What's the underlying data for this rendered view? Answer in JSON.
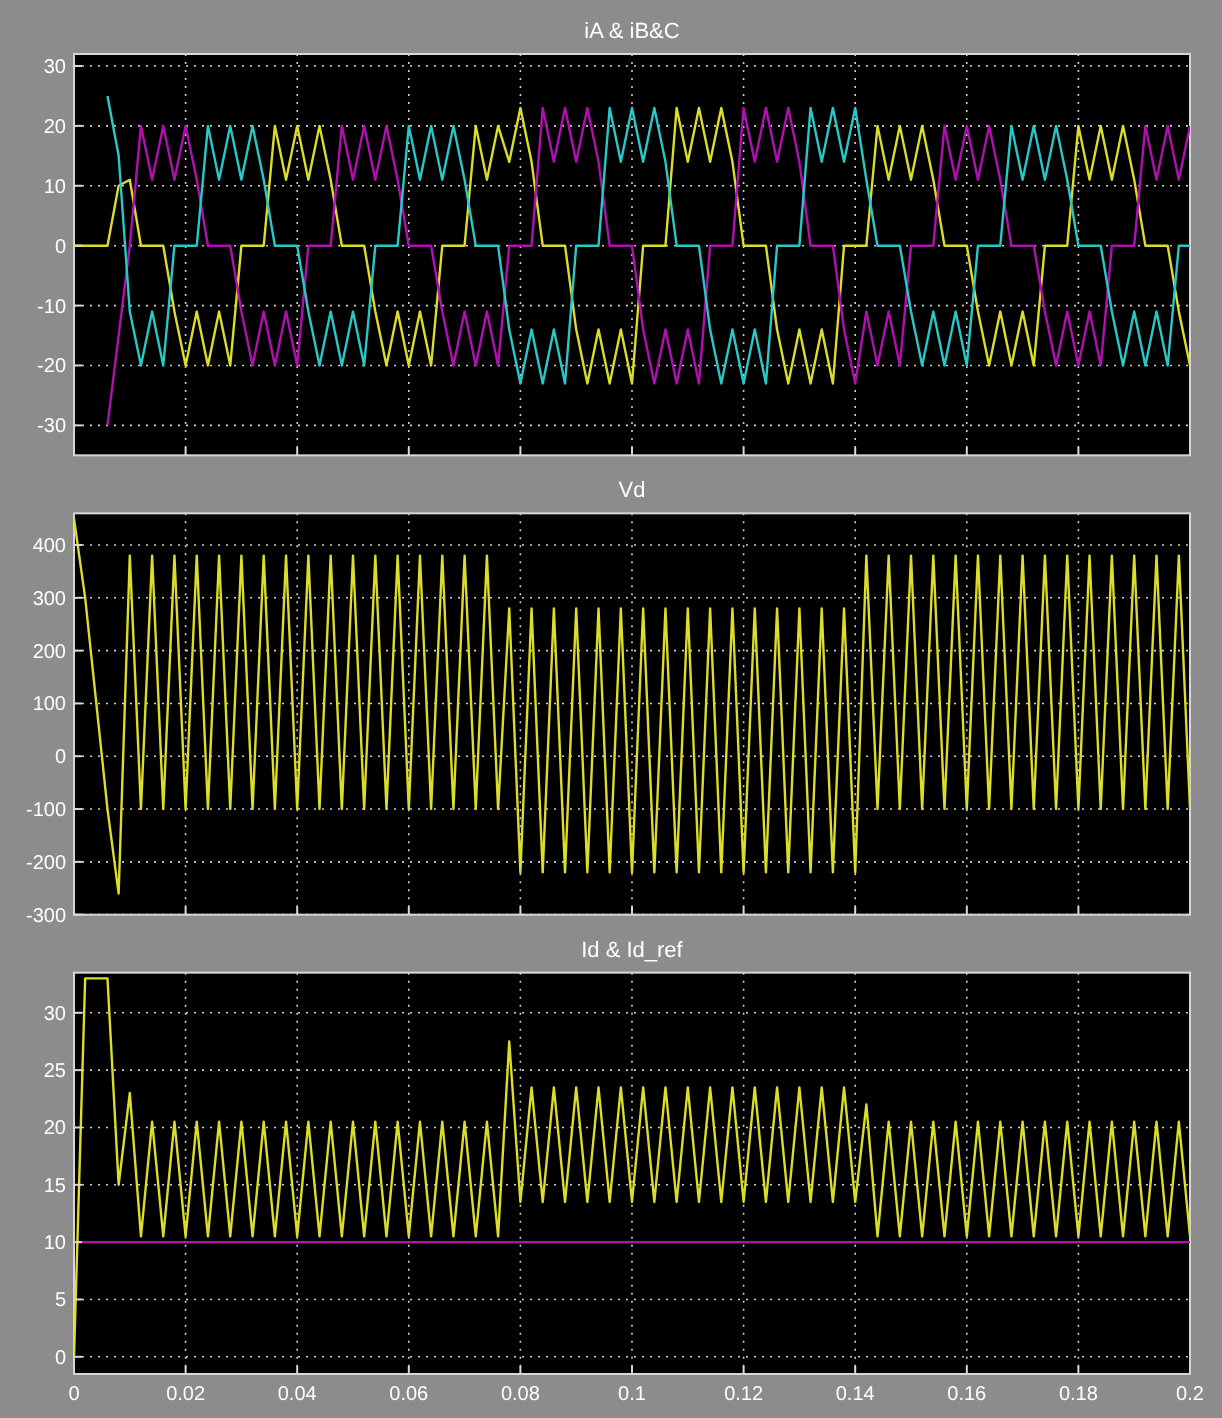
{
  "chart_data": [
    {
      "type": "line",
      "title": "iA & iB&C",
      "tick_labels": "y",
      "grid": true,
      "xlim": [
        0,
        0.2
      ],
      "xticks": [
        0,
        0.02,
        0.04,
        0.06,
        0.08,
        0.1,
        0.12,
        0.14,
        0.16,
        0.18,
        0.2
      ],
      "ylim": [
        -35,
        32
      ],
      "yticks": [
        -30,
        -20,
        -10,
        0,
        10,
        20,
        30
      ],
      "x": [
        0,
        0.002,
        0.004,
        0.006,
        0.008,
        0.01,
        0.012,
        0.014,
        0.016,
        0.018,
        0.02,
        0.022,
        0.024,
        0.026,
        0.028,
        0.03,
        0.032,
        0.034,
        0.036,
        0.038,
        0.04,
        0.042,
        0.044,
        0.046,
        0.048,
        0.05,
        0.052,
        0.054,
        0.056,
        0.058,
        0.06,
        0.062,
        0.064,
        0.066,
        0.068,
        0.07,
        0.072,
        0.074,
        0.076,
        0.078,
        0.08,
        0.082,
        0.084,
        0.086,
        0.088,
        0.09,
        0.092,
        0.094,
        0.096,
        0.098,
        0.1,
        0.102,
        0.104,
        0.106,
        0.108,
        0.11,
        0.112,
        0.114,
        0.116,
        0.118,
        0.12,
        0.122,
        0.124,
        0.126,
        0.128,
        0.13,
        0.132,
        0.134,
        0.136,
        0.138,
        0.14,
        0.142,
        0.144,
        0.146,
        0.148,
        0.15,
        0.152,
        0.154,
        0.156,
        0.158,
        0.16,
        0.162,
        0.164,
        0.166,
        0.168,
        0.17,
        0.172,
        0.174,
        0.176,
        0.178,
        0.18,
        0.182,
        0.184,
        0.186,
        0.188,
        0.19,
        0.192,
        0.194,
        0.196,
        0.198,
        0.2
      ],
      "series": [
        {
          "color": "#dcdc2a",
          "values": [
            0,
            0,
            0,
            0,
            10,
            11,
            0,
            0,
            0,
            -11,
            -20,
            -11,
            -20,
            -11,
            -20,
            0,
            0,
            0,
            20,
            11,
            20,
            11,
            20,
            11,
            0,
            0,
            0,
            -11,
            -20,
            -11,
            -20,
            -11,
            -20,
            0,
            0,
            0,
            20,
            11,
            20,
            14,
            23,
            14,
            0,
            0,
            0,
            -14,
            -23,
            -14,
            -23,
            -14,
            -23,
            0,
            0,
            0,
            23,
            14,
            23,
            14,
            23,
            14,
            0,
            0,
            0,
            -14,
            -23,
            -14,
            -23,
            -14,
            -23,
            0,
            0,
            0,
            20,
            11,
            20,
            11,
            20,
            11,
            0,
            0,
            0,
            -11,
            -20,
            -11,
            -20,
            -11,
            -20,
            0,
            0,
            0,
            20,
            11,
            20,
            11,
            20,
            11,
            0,
            0,
            0,
            -11,
            -20
          ]
        },
        {
          "color": "#b010b0",
          "values": [
            null,
            null,
            null,
            -30,
            -15,
            0,
            20,
            11,
            20,
            11,
            20,
            11,
            0,
            0,
            0,
            -11,
            -20,
            -11,
            -20,
            -11,
            -20,
            0,
            0,
            0,
            20,
            11,
            20,
            11,
            20,
            11,
            0,
            0,
            0,
            -11,
            -20,
            -11,
            -20,
            -11,
            -20,
            0,
            0,
            0,
            23,
            14,
            23,
            14,
            23,
            14,
            0,
            0,
            0,
            -14,
            -23,
            -14,
            -23,
            -14,
            -23,
            0,
            0,
            0,
            23,
            14,
            23,
            14,
            23,
            14,
            0,
            0,
            0,
            -14,
            -23,
            -11,
            -20,
            -11,
            -20,
            0,
            0,
            0,
            20,
            11,
            20,
            11,
            20,
            11,
            0,
            0,
            0,
            -11,
            -20,
            -11,
            -20,
            -11,
            -20,
            0,
            0,
            0,
            20,
            11,
            20,
            11,
            20
          ]
        },
        {
          "color": "#28c8c8",
          "values": [
            null,
            null,
            null,
            25,
            15,
            -11,
            -20,
            -11,
            -20,
            0,
            0,
            0,
            20,
            11,
            20,
            11,
            20,
            11,
            0,
            0,
            0,
            -11,
            -20,
            -11,
            -20,
            -11,
            -20,
            0,
            0,
            0,
            20,
            11,
            20,
            11,
            20,
            11,
            0,
            0,
            0,
            -14,
            -23,
            -14,
            -23,
            -14,
            -23,
            0,
            0,
            0,
            23,
            14,
            23,
            14,
            23,
            14,
            0,
            0,
            0,
            -14,
            -23,
            -14,
            -23,
            -14,
            -23,
            0,
            0,
            0,
            23,
            14,
            23,
            14,
            23,
            11,
            0,
            0,
            0,
            -11,
            -20,
            -11,
            -20,
            -11,
            -20,
            0,
            0,
            0,
            20,
            11,
            20,
            11,
            20,
            11,
            0,
            0,
            0,
            -11,
            -20,
            -11,
            -20,
            -11,
            -20,
            0,
            0
          ]
        }
      ]
    },
    {
      "type": "line",
      "title": "Vd",
      "tick_labels": "y",
      "grid": true,
      "xlim": [
        0,
        0.2
      ],
      "xticks": [
        0,
        0.02,
        0.04,
        0.06,
        0.08,
        0.1,
        0.12,
        0.14,
        0.16,
        0.18,
        0.2
      ],
      "ylim": [
        -300,
        460
      ],
      "yticks": [
        -300,
        -200,
        -100,
        0,
        100,
        200,
        300,
        400
      ],
      "x": [
        0,
        0.002,
        0.004,
        0.006,
        0.008,
        0.01,
        0.012,
        0.014,
        0.016,
        0.018,
        0.02,
        0.022,
        0.024,
        0.026,
        0.028,
        0.03,
        0.032,
        0.034,
        0.036,
        0.038,
        0.04,
        0.042,
        0.044,
        0.046,
        0.048,
        0.05,
        0.052,
        0.054,
        0.056,
        0.058,
        0.06,
        0.062,
        0.064,
        0.066,
        0.068,
        0.07,
        0.072,
        0.074,
        0.076,
        0.078,
        0.08,
        0.082,
        0.084,
        0.086,
        0.088,
        0.09,
        0.092,
        0.094,
        0.096,
        0.098,
        0.1,
        0.102,
        0.104,
        0.106,
        0.108,
        0.11,
        0.112,
        0.114,
        0.116,
        0.118,
        0.12,
        0.122,
        0.124,
        0.126,
        0.128,
        0.13,
        0.132,
        0.134,
        0.136,
        0.138,
        0.14,
        0.142,
        0.144,
        0.146,
        0.148,
        0.15,
        0.152,
        0.154,
        0.156,
        0.158,
        0.16,
        0.162,
        0.164,
        0.166,
        0.168,
        0.17,
        0.172,
        0.174,
        0.176,
        0.178,
        0.18,
        0.182,
        0.184,
        0.186,
        0.188,
        0.19,
        0.192,
        0.194,
        0.196,
        0.198,
        0.2
      ],
      "series": [
        {
          "color": "#dcdc2a",
          "values": [
            450,
            300,
            100,
            -100,
            -260,
            380,
            -100,
            380,
            -100,
            380,
            -100,
            380,
            -100,
            380,
            -100,
            380,
            -100,
            380,
            -100,
            380,
            -100,
            380,
            -100,
            380,
            -100,
            380,
            -100,
            380,
            -100,
            380,
            -100,
            380,
            -100,
            380,
            -100,
            380,
            -100,
            380,
            -100,
            280,
            -220,
            280,
            -220,
            280,
            -220,
            280,
            -220,
            280,
            -220,
            280,
            -220,
            280,
            -220,
            280,
            -220,
            280,
            -220,
            280,
            -220,
            280,
            -220,
            280,
            -220,
            280,
            -220,
            280,
            -220,
            280,
            -220,
            280,
            -220,
            380,
            -100,
            380,
            -100,
            380,
            -100,
            380,
            -100,
            380,
            -100,
            380,
            -100,
            380,
            -100,
            380,
            -100,
            380,
            -100,
            380,
            -100,
            380,
            -100,
            380,
            -100,
            380,
            -100,
            380,
            -100,
            380,
            -100
          ]
        }
      ]
    },
    {
      "type": "line",
      "title": "Id & Id_ref",
      "grid": true,
      "xlim": [
        0,
        0.2
      ],
      "xticks": [
        0,
        0.02,
        0.04,
        0.06,
        0.08,
        0.1,
        0.12,
        0.14,
        0.16,
        0.18,
        0.2
      ],
      "ylim": [
        -1.5,
        33.5
      ],
      "yticks": [
        0,
        5,
        10,
        15,
        20,
        25,
        30
      ],
      "x": [
        0,
        0.002,
        0.004,
        0.006,
        0.008,
        0.01,
        0.012,
        0.014,
        0.016,
        0.018,
        0.02,
        0.022,
        0.024,
        0.026,
        0.028,
        0.03,
        0.032,
        0.034,
        0.036,
        0.038,
        0.04,
        0.042,
        0.044,
        0.046,
        0.048,
        0.05,
        0.052,
        0.054,
        0.056,
        0.058,
        0.06,
        0.062,
        0.064,
        0.066,
        0.068,
        0.07,
        0.072,
        0.074,
        0.076,
        0.078,
        0.08,
        0.082,
        0.084,
        0.086,
        0.088,
        0.09,
        0.092,
        0.094,
        0.096,
        0.098,
        0.1,
        0.102,
        0.104,
        0.106,
        0.108,
        0.11,
        0.112,
        0.114,
        0.116,
        0.118,
        0.12,
        0.122,
        0.124,
        0.126,
        0.128,
        0.13,
        0.132,
        0.134,
        0.136,
        0.138,
        0.14,
        0.142,
        0.144,
        0.146,
        0.148,
        0.15,
        0.152,
        0.154,
        0.156,
        0.158,
        0.16,
        0.162,
        0.164,
        0.166,
        0.168,
        0.17,
        0.172,
        0.174,
        0.176,
        0.178,
        0.18,
        0.182,
        0.184,
        0.186,
        0.188,
        0.19,
        0.192,
        0.194,
        0.196,
        0.198,
        0.2
      ],
      "series": [
        {
          "color": "#b010b0",
          "x": [
            0,
            0.2
          ],
          "values": [
            10,
            10
          ]
        },
        {
          "color": "#dcdc2a",
          "values": [
            0,
            33,
            33,
            33,
            15,
            23,
            10.5,
            20.5,
            10.5,
            20.5,
            10.5,
            20.5,
            10.5,
            20.5,
            10.5,
            20.5,
            10.5,
            20.5,
            10.5,
            20.5,
            10.5,
            20.5,
            10.5,
            20.5,
            10.5,
            20.5,
            10.5,
            20.5,
            10.5,
            20.5,
            10.5,
            20.5,
            10.5,
            20.5,
            10.5,
            20.5,
            10.5,
            20.5,
            10.5,
            27.5,
            13.5,
            23.5,
            13.5,
            23.5,
            13.5,
            23.5,
            13.5,
            23.5,
            13.5,
            23.5,
            13.5,
            23.5,
            13.5,
            23.5,
            13.5,
            23.5,
            13.5,
            23.5,
            13.5,
            23.5,
            13.5,
            23.5,
            13.5,
            23.5,
            13.5,
            23.5,
            13.5,
            23.5,
            13.5,
            23.5,
            13.5,
            22,
            10.5,
            20.5,
            10.5,
            20.5,
            10.5,
            20.5,
            10.5,
            20.5,
            10.5,
            20.5,
            10.5,
            20.5,
            10.5,
            20.5,
            10.5,
            20.5,
            10.5,
            20.5,
            10.5,
            20.5,
            10.5,
            20.5,
            10.5,
            20.5,
            10.5,
            20.5,
            10.5,
            20.5,
            10.5
          ]
        }
      ]
    }
  ]
}
